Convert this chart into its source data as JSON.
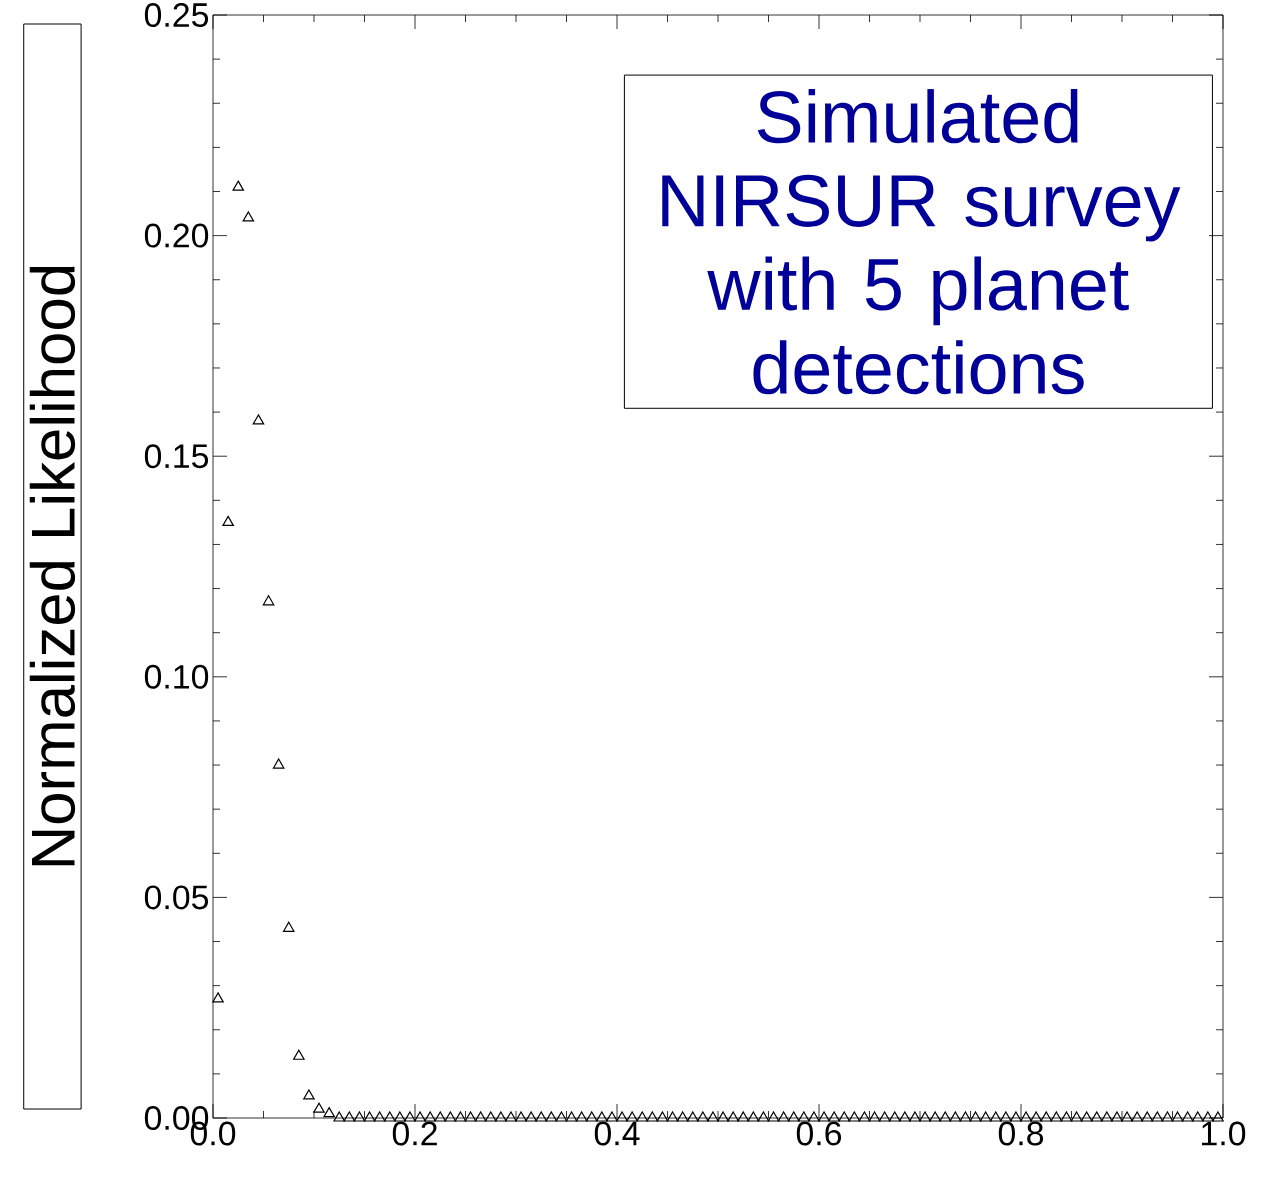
{
  "chart_data": {
    "type": "scatter",
    "ylabel": "Normalized Likelihood",
    "annotations": [
      "Simulated NIRSUR survey with 5 planet detections"
    ],
    "marker": "triangle",
    "xlim": [
      0,
      1
    ],
    "ylim": [
      0,
      0.25
    ],
    "xticks": [
      {
        "value": 0,
        "label": "0.0"
      },
      {
        "value": 0.2,
        "label": "0.2"
      },
      {
        "value": 0.4,
        "label": "0.4"
      },
      {
        "value": 0.6,
        "label": "0.6"
      },
      {
        "value": 0.8,
        "label": "0.8"
      },
      {
        "value": 1,
        "label": "1.0"
      }
    ],
    "yticks": [
      {
        "value": 0,
        "label": "0.00"
      },
      {
        "value": 0.05,
        "label": "0.05"
      },
      {
        "value": 0.1,
        "label": "0.10"
      },
      {
        "value": 0.15,
        "label": "0.15"
      },
      {
        "value": 0.2,
        "label": "0.20"
      },
      {
        "value": 0.25,
        "label": "0.25"
      }
    ],
    "x": [
      0.005,
      0.015,
      0.025,
      0.035,
      0.045,
      0.055,
      0.065,
      0.075,
      0.085,
      0.095,
      0.105,
      0.115,
      0.125,
      0.135,
      0.145,
      0.155,
      0.165,
      0.175,
      0.185,
      0.195,
      0.205,
      0.215,
      0.225,
      0.235,
      0.245,
      0.255,
      0.265,
      0.275,
      0.285,
      0.295,
      0.305,
      0.315,
      0.325,
      0.335,
      0.345,
      0.355,
      0.365,
      0.375,
      0.385,
      0.395,
      0.405,
      0.415,
      0.425,
      0.435,
      0.445,
      0.455,
      0.465,
      0.475,
      0.485,
      0.495,
      0.505,
      0.515,
      0.525,
      0.535,
      0.545,
      0.555,
      0.565,
      0.575,
      0.585,
      0.595,
      0.605,
      0.615,
      0.625,
      0.635,
      0.645,
      0.655,
      0.665,
      0.675,
      0.685,
      0.695,
      0.705,
      0.715,
      0.725,
      0.735,
      0.745,
      0.755,
      0.765,
      0.775,
      0.785,
      0.795,
      0.805,
      0.815,
      0.825,
      0.835,
      0.845,
      0.855,
      0.865,
      0.875,
      0.885,
      0.895,
      0.905,
      0.915,
      0.925,
      0.935,
      0.945,
      0.955,
      0.965,
      0.975,
      0.985,
      0.995
    ],
    "series": [
      {
        "color": "#000000",
        "values": [
          0.027,
          0.135,
          0.211,
          0.204,
          0.158,
          0.117,
          0.08,
          0.043,
          0.014,
          0.005,
          0.002,
          0.001,
          0,
          0,
          0,
          0,
          0,
          0,
          0,
          0,
          0,
          0,
          0,
          0,
          0,
          0,
          0,
          0,
          0,
          0,
          0,
          0,
          0,
          0,
          0,
          0,
          0,
          0,
          0,
          0,
          0,
          0,
          0,
          0,
          0,
          0,
          0,
          0,
          0,
          0,
          0,
          0,
          0,
          0,
          0,
          0,
          0,
          0,
          0,
          0,
          0,
          0,
          0,
          0,
          0,
          0,
          0,
          0,
          0,
          0,
          0,
          0,
          0,
          0,
          0,
          0,
          0,
          0,
          0,
          0,
          0,
          0,
          0,
          0,
          0,
          0,
          0,
          0,
          0,
          0,
          0,
          0,
          0,
          0,
          0,
          0,
          0,
          0,
          0,
          0
        ]
      }
    ]
  }
}
